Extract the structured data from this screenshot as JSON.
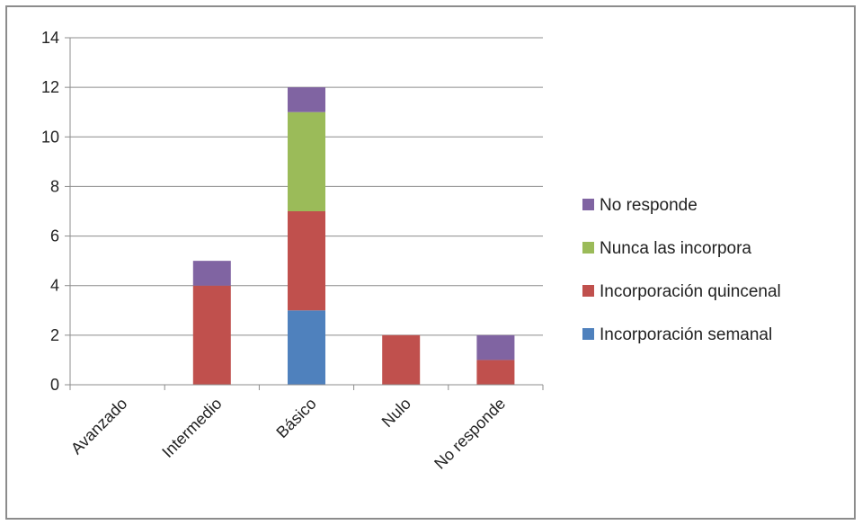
{
  "chart_data": {
    "type": "bar",
    "stacked": true,
    "categories": [
      "Avanzado",
      "Intermedio",
      "Básico",
      "Nulo",
      "No responde"
    ],
    "series": [
      {
        "name": "Incorporación semanal",
        "values": [
          0,
          0,
          3,
          0,
          0
        ],
        "color": "#4f81bd"
      },
      {
        "name": "Incorporación quincenal",
        "values": [
          0,
          4,
          4,
          2,
          1
        ],
        "color": "#c0504d"
      },
      {
        "name": "Nunca las incorpora",
        "values": [
          0,
          0,
          4,
          0,
          0
        ],
        "color": "#9bbb59"
      },
      {
        "name": "No responde",
        "values": [
          0,
          1,
          1,
          0,
          1
        ],
        "color": "#8064a2"
      }
    ],
    "y_ticks": [
      "0",
      "2",
      "4",
      "6",
      "8",
      "10",
      "12",
      "14"
    ],
    "ylim": [
      0,
      14
    ],
    "grid": true,
    "legend": {
      "placement": "right",
      "order": [
        "No responde",
        "Nunca las incorpora",
        "Incorporación quincenal",
        "Incorporación semanal"
      ]
    },
    "title": "",
    "xlabel": "",
    "ylabel": ""
  }
}
